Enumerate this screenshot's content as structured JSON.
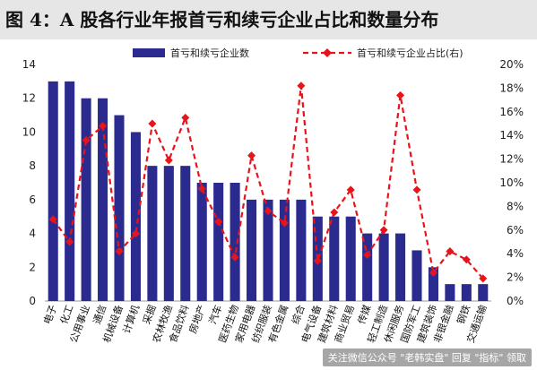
{
  "title": "图 4：A 股各行业年报首亏和续亏企业占比和数量分布",
  "watermark": "关注微信公众号 \"老韩实盘\" 回复 \"指标\" 领取",
  "colors": {
    "bar": "#2b2b8f",
    "line": "#e8141b",
    "axis": "#999999",
    "title_bg": "#e6e6e6"
  },
  "chart_data": {
    "type": "bar+line",
    "title": "图 4：A 股各行业年报首亏和续亏企业占比和数量分布",
    "categories": [
      "电子",
      "化工",
      "公用事业",
      "通信",
      "机械设备",
      "计算机",
      "采掘",
      "农林牧渔",
      "食品饮料",
      "房地产",
      "汽车",
      "医药生物",
      "家用电器",
      "纺织服装",
      "有色金属",
      "综合",
      "电气设备",
      "建筑材料",
      "商业贸易",
      "传媒",
      "轻工制造",
      "休闲服务",
      "国防军工",
      "建筑装饰",
      "非银金融",
      "钢铁",
      "交通运输"
    ],
    "series": [
      {
        "name": "首亏和续亏企业数",
        "type": "bar",
        "axis": "left",
        "values": [
          13,
          13,
          12,
          12,
          11,
          10,
          8,
          8,
          8,
          7,
          7,
          7,
          6,
          6,
          6,
          6,
          5,
          5,
          5,
          4,
          4,
          4,
          3,
          2,
          1,
          1,
          1
        ]
      },
      {
        "name": "首亏和续亏企业占比(右)",
        "type": "line",
        "axis": "right",
        "values": [
          6.9,
          5.0,
          13.6,
          14.8,
          4.2,
          5.7,
          15.0,
          11.9,
          15.5,
          9.5,
          6.7,
          3.7,
          12.3,
          7.6,
          6.6,
          18.2,
          3.4,
          7.5,
          9.4,
          3.9,
          6.0,
          17.4,
          9.4,
          2.4,
          4.2,
          3.5,
          1.9
        ]
      }
    ],
    "y_left": {
      "min": 0,
      "max": 14,
      "step": 2
    },
    "y_right": {
      "min": 0,
      "max": 20,
      "step": 2,
      "unit": "%"
    },
    "legend_position": "top",
    "grid": false
  }
}
